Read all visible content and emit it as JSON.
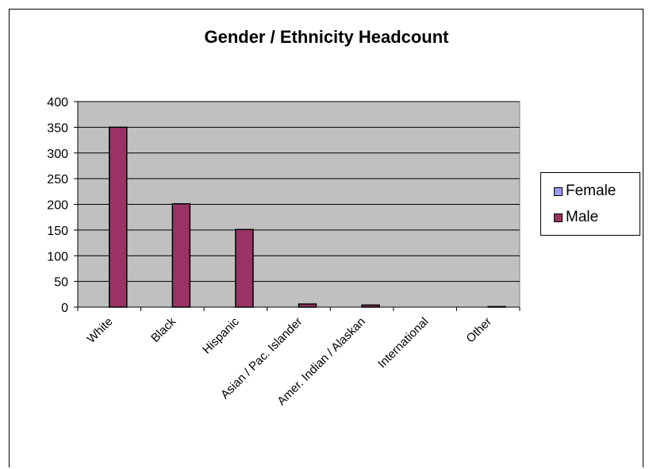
{
  "chart_data": {
    "type": "bar",
    "title": "Gender / Ethnicity Headcount",
    "categories": [
      "White",
      "Black",
      "Hispanic",
      "Asian / Pac. Islander",
      "Amer. Indian / Alaskan",
      "International",
      "Other"
    ],
    "series": [
      {
        "name": "Female",
        "values": [
          0,
          0,
          0,
          0,
          0,
          0,
          0
        ],
        "color": "#9999ff"
      },
      {
        "name": "Male",
        "values": [
          350,
          201,
          151,
          6,
          4,
          0,
          1
        ],
        "color": "#993366"
      }
    ],
    "ylim": [
      0,
      400
    ],
    "yticks": [
      0,
      50,
      100,
      150,
      200,
      250,
      300,
      350,
      400
    ],
    "ytick_labels": [
      "0",
      "50",
      "100",
      "150",
      "200",
      "250",
      "300",
      "350",
      "400"
    ],
    "grid": true,
    "plot_background": "#c0c0c0",
    "legend_position": "right"
  }
}
